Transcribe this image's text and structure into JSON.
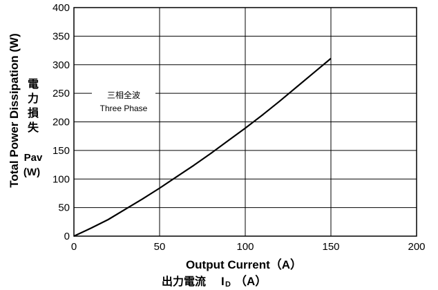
{
  "chart_data": {
    "type": "line",
    "xlabel": "Output Current（A）",
    "xlabel_jp": "出力電流",
    "xlabel_jp_symbol": "I",
    "xlabel_jp_subscript": "D",
    "xlabel_jp_unit": "（A）",
    "ylabel": "Total Power Dissipation (W)",
    "ylabel_jp_chars": [
      "電",
      "力",
      "損",
      "失"
    ],
    "ylabel_symbol": "Pav",
    "ylabel_unit": "(W)",
    "xlim": [
      0,
      200
    ],
    "ylim": [
      0,
      400
    ],
    "x_ticks": [
      0,
      50,
      100,
      150,
      200
    ],
    "y_ticks": [
      0,
      50,
      100,
      150,
      200,
      250,
      300,
      350,
      400
    ],
    "grid": true,
    "annotation": {
      "jp": "三相全波",
      "en": "Three Phase"
    },
    "series": [
      {
        "x": [
          0,
          10,
          20,
          30,
          40,
          50,
          60,
          70,
          80,
          90,
          100,
          110,
          120,
          130,
          140,
          150
        ],
        "y": [
          0,
          14,
          29,
          47,
          65,
          84,
          104,
          124,
          145,
          167,
          189,
          212,
          236,
          261,
          286,
          311
        ],
        "color": "#000000"
      }
    ]
  }
}
